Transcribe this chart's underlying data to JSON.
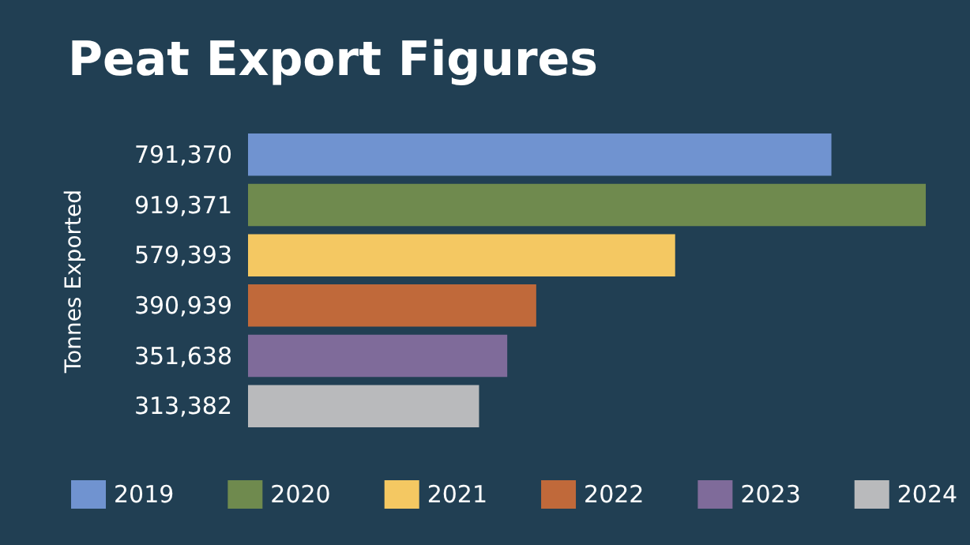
{
  "chart_data": {
    "type": "bar",
    "title": "Peat Export Figures",
    "annotations": [
      "Tonnes Exported"
    ],
    "orientation": "horizontal",
    "stacked": true,
    "legend": "bottom",
    "categories": [
      null,
      null,
      null,
      null,
      null,
      null
    ],
    "series": [
      {
        "name": "2019",
        "color": "#7093d0",
        "values": [
          791370,
          null,
          null,
          null,
          null,
          null
        ],
        "value_labels": [
          "791,370",
          null,
          null,
          null,
          null,
          null
        ]
      },
      {
        "name": "2020",
        "color": "#6f8a4e",
        "values": [
          null,
          919371,
          null,
          null,
          null,
          null
        ],
        "value_labels": [
          null,
          "919,371",
          null,
          null,
          null,
          null
        ]
      },
      {
        "name": "2021",
        "color": "#f4c862",
        "values": [
          null,
          null,
          579393,
          null,
          null,
          null
        ],
        "value_labels": [
          null,
          null,
          "579,393",
          null,
          null,
          null
        ]
      },
      {
        "name": "2022",
        "color": "#c0693a",
        "values": [
          null,
          null,
          null,
          390939,
          null,
          null
        ],
        "value_labels": [
          null,
          null,
          null,
          "390,939",
          null,
          null
        ]
      },
      {
        "name": "2023",
        "color": "#7f6b9a",
        "values": [
          null,
          null,
          null,
          null,
          351638,
          null
        ],
        "value_labels": [
          null,
          null,
          null,
          null,
          "351,638",
          null
        ]
      },
      {
        "name": "2024",
        "color": "#b9babc",
        "values": [
          null,
          null,
          null,
          null,
          null,
          313382
        ],
        "value_labels": [
          null,
          null,
          null,
          null,
          null,
          "313,382"
        ]
      }
    ]
  }
}
